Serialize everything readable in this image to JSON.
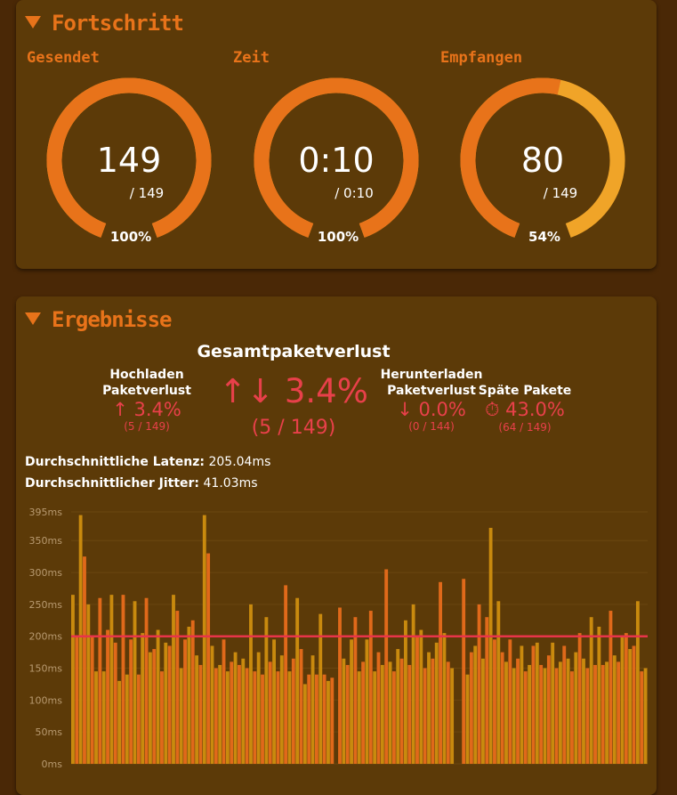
{
  "progress": {
    "title": "Fortschritt",
    "gauges": [
      {
        "label": "Gesendet",
        "value": "149",
        "total": "/ 149",
        "percent": {
          "value": 100,
          "label": "100%"
        }
      },
      {
        "label": "Zeit",
        "value": "0:10",
        "total": "/ 0:10",
        "percent": {
          "value": 100,
          "label": "100%"
        }
      },
      {
        "label": "Empfangen",
        "value": "80",
        "total": "/ 149",
        "percent": {
          "value": 54,
          "label": "54%"
        }
      }
    ]
  },
  "results": {
    "title": "Ergebnisse",
    "total_heading": "Gesamtpaketverlust",
    "total_value": "↑↓ 3.4%",
    "total_detail": "(5 / 149)",
    "stats": [
      {
        "label": "Hochladen Paketverlust",
        "value": "↑ 3.4%",
        "detail": "(5 / 149)"
      },
      {
        "label": "Herunterladen Paketverlust",
        "value": "↓ 0.0%",
        "detail": "(0 / 144)"
      },
      {
        "label": "Späte Pakete",
        "value": "⏱ 43.0%",
        "detail": "(64 / 149)"
      }
    ],
    "latency_label": "Durchschnittliche Latenz:",
    "latency_value": "205.04ms",
    "jitter_label": "Durchschnittlicher Jitter:",
    "jitter_value": "41.03ms"
  },
  "chart_data": {
    "type": "bar",
    "colors": [
      "#c98a0e",
      "#e0691a"
    ],
    "line_color": "#e8344a",
    "reference_line": 200,
    "ylim": [
      0,
      395
    ],
    "yticks": [
      {
        "value": 0,
        "label": "0ms"
      },
      {
        "value": 50,
        "label": "50ms"
      },
      {
        "value": 100,
        "label": "100ms"
      },
      {
        "value": 150,
        "label": "150ms"
      },
      {
        "value": 200,
        "label": "200ms"
      },
      {
        "value": 250,
        "label": "250ms"
      },
      {
        "value": 300,
        "label": "300ms"
      },
      {
        "value": 350,
        "label": "350ms"
      },
      {
        "value": 395,
        "label": "395ms"
      }
    ],
    "values": [
      265,
      200,
      390,
      325,
      250,
      200,
      145,
      260,
      145,
      210,
      265,
      190,
      130,
      265,
      140,
      195,
      255,
      140,
      205,
      260,
      175,
      180,
      210,
      145,
      190,
      185,
      265,
      240,
      150,
      195,
      215,
      225,
      170,
      155,
      390,
      330,
      185,
      150,
      155,
      195,
      145,
      160,
      175,
      155,
      165,
      150,
      250,
      145,
      175,
      140,
      230,
      160,
      195,
      145,
      170,
      280,
      145,
      165,
      260,
      180,
      125,
      140,
      170,
      140,
      235,
      140,
      130,
      135,
      null,
      245,
      165,
      155,
      195,
      230,
      145,
      160,
      195,
      240,
      145,
      175,
      155,
      305,
      160,
      145,
      180,
      165,
      225,
      155,
      250,
      200,
      210,
      150,
      175,
      165,
      190,
      285,
      205,
      160,
      150,
      null,
      null,
      290,
      140,
      175,
      185,
      250,
      165,
      230,
      370,
      195,
      255,
      175,
      160,
      195,
      150,
      165,
      185,
      145,
      155,
      185,
      190,
      155,
      150,
      170,
      190,
      150,
      160,
      185,
      165,
      145,
      175,
      205,
      165,
      150,
      230,
      155,
      215,
      155,
      160,
      240,
      170,
      160,
      200,
      205,
      180,
      185,
      255,
      145,
      150
    ]
  }
}
